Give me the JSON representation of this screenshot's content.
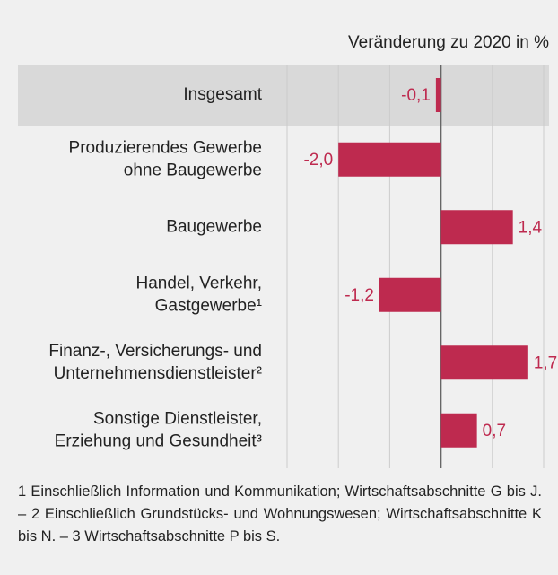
{
  "chart_data": {
    "type": "hbar",
    "axis_label": "Veränderung zu 2020 in %",
    "categories": [
      [
        "Insgesamt"
      ],
      [
        "Produzierendes Gewerbe",
        "ohne Baugewerbe"
      ],
      [
        "Baugewerbe"
      ],
      [
        "Handel, Verkehr,",
        "Gastgewerbe¹"
      ],
      [
        "Finanz-, Versicherungs- und",
        "Unternehmensdienstleister²"
      ],
      [
        "Sonstige Dienstleister,",
        "Erziehung und Gesundheit³"
      ]
    ],
    "values": [
      -0.1,
      -2.0,
      1.4,
      -1.2,
      1.7,
      0.7
    ],
    "value_labels": [
      "-0,1",
      "-2,0",
      "1,4",
      "-1,2",
      "1,7",
      "0,7"
    ],
    "color": "#be2a4f",
    "xlim": [
      -3,
      2
    ],
    "xticks": [
      -3,
      -2,
      -1,
      0,
      1,
      2
    ],
    "grid": true,
    "footnote": "1 Einschließlich Information und Kommunikation; Wirtschaftsabschnitte G bis J. – 2 Einschließlich Grundstücks- und Wohnungswesen; Wirtschaftsabschnitte K bis N. – 3 Wirtschaftsabschnitte P bis S."
  }
}
